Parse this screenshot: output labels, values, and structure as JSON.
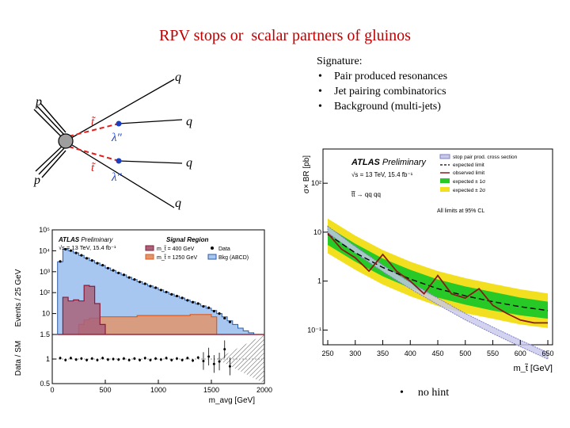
{
  "slide": {
    "title": "RPV stops or  scalar partners of gluinos",
    "signature_heading": "Signature:",
    "bullets": [
      "Pair produced resonances",
      "Jet pairing combinatorics",
      "Background (multi-jets)"
    ],
    "bullet_glyph": "•",
    "hint": "no hint"
  },
  "feynman": {
    "labels": {
      "p_top": "p",
      "p_bottom": "p",
      "q1": "q",
      "q2": "q",
      "q3": "q",
      "q4": "q",
      "stop1": "t̃",
      "stop2": "t̃",
      "lambda1": "λ″",
      "lambda2": "λ″"
    },
    "colors": {
      "stop_line": "#e02020",
      "vertex": "#1a3fbf",
      "blob": "#9e9e9e"
    }
  },
  "chart_data": [
    {
      "type": "bar",
      "title": "Signal Region",
      "atlas": "ATLAS",
      "atlas_suffix": "Preliminary",
      "energy": "√s = 13 TeV, 15.4 fb⁻¹",
      "xlabel": "m_avg [GeV]",
      "ylabel_top": "Events / 25 GeV",
      "ylabel_bottom": "Data / SM",
      "x_ticks": [
        "0",
        "500",
        "1000",
        "1500",
        "2000"
      ],
      "y_ticks_top": [
        "10",
        "10²",
        "10³",
        "10⁴",
        "10⁵"
      ],
      "y_ticks_bottom": [
        "0.5",
        "1",
        "1.5"
      ],
      "xlim": [
        0,
        2000
      ],
      "ylim_log": [
        1,
        100000
      ],
      "ratio_ylim": [
        0.5,
        1.5
      ],
      "legend": [
        {
          "name": "m_t̃ = 400 GeV",
          "color": "#8a1c3a",
          "fill": "#a8627a"
        },
        {
          "name": "m_t̃ = 1250 GeV",
          "color": "#e05a1c",
          "fill": "#e0956c"
        },
        {
          "name": "Data",
          "color": "#000000"
        },
        {
          "name": "Bkg (ABCD)",
          "color": "#2c5ba8",
          "fill": "#a7c7f0"
        }
      ],
      "bin_edges": [
        50,
        100,
        150,
        200,
        250,
        300,
        350,
        400,
        450,
        500,
        550,
        600,
        650,
        700,
        750,
        800,
        850,
        900,
        950,
        1000,
        1050,
        1100,
        1150,
        1200,
        1250,
        1300,
        1350,
        1400,
        1450,
        1500,
        1550,
        1600,
        1650,
        1700,
        1750,
        1800,
        1850,
        1900,
        1950,
        2000
      ],
      "background": [
        3000,
        12000,
        10000,
        8000,
        6000,
        4500,
        3400,
        2600,
        2000,
        1500,
        1150,
        880,
        700,
        540,
        420,
        330,
        260,
        210,
        170,
        135,
        105,
        85,
        68,
        55,
        44,
        36,
        29,
        23,
        18,
        14,
        10,
        7,
        4.5,
        3,
        2,
        1.5,
        1.2,
        1,
        1
      ],
      "signal_400": [
        1,
        60,
        40,
        45,
        40,
        220,
        200,
        30,
        3,
        1,
        1,
        1,
        1,
        1,
        1,
        1,
        1,
        1,
        1,
        1,
        1,
        1,
        1,
        1,
        1,
        1,
        1,
        1,
        1,
        1,
        1,
        1,
        1,
        1,
        1,
        1,
        1,
        1,
        1
      ],
      "signal_1250": [
        1,
        1,
        1,
        1,
        3,
        5,
        6,
        6,
        7,
        7,
        7,
        7,
        7,
        7,
        7,
        8,
        8,
        8,
        8,
        8,
        8,
        8,
        8,
        8,
        8,
        9,
        9,
        9,
        9,
        7,
        1,
        1,
        1,
        1,
        1,
        1,
        1,
        1,
        1
      ],
      "data_x": [
        75,
        125,
        175,
        225,
        275,
        325,
        375,
        425,
        475,
        525,
        575,
        625,
        675,
        725,
        775,
        825,
        875,
        925,
        975,
        1025,
        1075,
        1125,
        1175,
        1225,
        1275,
        1325,
        1375,
        1425,
        1475,
        1525,
        1575,
        1625,
        1675
      ],
      "data_y": [
        3100,
        11800,
        10200,
        7900,
        6100,
        4400,
        3450,
        2550,
        2050,
        1480,
        1160,
        870,
        710,
        530,
        425,
        325,
        265,
        205,
        172,
        133,
        107,
        83,
        69,
        56,
        43,
        35,
        30,
        22,
        19,
        13,
        10,
        6,
        4
      ],
      "ratio_x": [
        75,
        125,
        175,
        225,
        275,
        325,
        375,
        425,
        475,
        525,
        575,
        625,
        675,
        725,
        775,
        825,
        875,
        925,
        975,
        1025,
        1075,
        1125,
        1175,
        1225,
        1275,
        1325,
        1375,
        1425,
        1475,
        1525,
        1575,
        1625,
        1675
      ],
      "ratio_y": [
        1.02,
        0.98,
        1.02,
        0.99,
        1.01,
        0.98,
        1.01,
        0.98,
        1.02,
        0.99,
        1.0,
        0.99,
        1.01,
        0.98,
        1.01,
        0.98,
        1.02,
        0.98,
        1.01,
        0.99,
        1.02,
        0.98,
        1.01,
        0.98,
        1.02,
        0.97,
        1.03,
        0.96,
        1.05,
        0.9,
        0.95,
        1.2,
        0.85
      ]
    },
    {
      "type": "line",
      "atlas": "ATLAS",
      "atlas_suffix": "Preliminary",
      "energy": "√s = 13 TeV, 15.4 fb⁻¹",
      "process": "t̃t̃ → qq qq",
      "note": "All limits at 95% CL",
      "xlabel": "m_t̃ [GeV]",
      "ylabel": "σ× BR [pb]",
      "x_ticks": [
        "250",
        "300",
        "350",
        "400",
        "450",
        "500",
        "550",
        "600",
        "650"
      ],
      "y_ticks": [
        "10⁻¹",
        "1",
        "10",
        "10²"
      ],
      "xlim": [
        250,
        650
      ],
      "ylim_log": [
        0.05,
        500
      ],
      "legend": [
        {
          "name": "stop pair prod. cross section",
          "color": "#7f7fc8"
        },
        {
          "name": "expected limit",
          "color": "#000000"
        },
        {
          "name": "observed limit",
          "color": "#8b1a1a"
        },
        {
          "name": "expected ± 1σ",
          "color": "#26c926"
        },
        {
          "name": "expected ± 2σ",
          "color": "#f2e020"
        }
      ],
      "x": [
        250,
        300,
        350,
        400,
        450,
        500,
        550,
        600,
        650
      ],
      "xsec": [
        11.5,
        4.43,
        1.84,
        0.82,
        0.39,
        0.19,
        0.1,
        0.054,
        0.03
      ],
      "expected": [
        9.0,
        3.8,
        1.9,
        1.1,
        0.7,
        0.5,
        0.38,
        0.3,
        0.25
      ],
      "band1_low": [
        5.5,
        2.5,
        1.25,
        0.72,
        0.46,
        0.33,
        0.25,
        0.2,
        0.17
      ],
      "band1_high": [
        13.0,
        5.8,
        2.9,
        1.7,
        1.08,
        0.78,
        0.6,
        0.46,
        0.38
      ],
      "band2_low": [
        3.7,
        1.7,
        0.85,
        0.49,
        0.31,
        0.22,
        0.17,
        0.13,
        0.11
      ],
      "band2_high": [
        19.0,
        8.5,
        4.3,
        2.5,
        1.6,
        1.15,
        0.88,
        0.68,
        0.56
      ],
      "obs_x": [
        250,
        275,
        300,
        325,
        350,
        375,
        400,
        425,
        450,
        475,
        500,
        525,
        550,
        575,
        600,
        625,
        650
      ],
      "observed": [
        9.5,
        4.5,
        3.0,
        1.6,
        3.5,
        1.6,
        1.0,
        0.55,
        1.3,
        0.55,
        0.45,
        0.7,
        0.32,
        0.22,
        0.16,
        0.14,
        0.14
      ]
    }
  ]
}
